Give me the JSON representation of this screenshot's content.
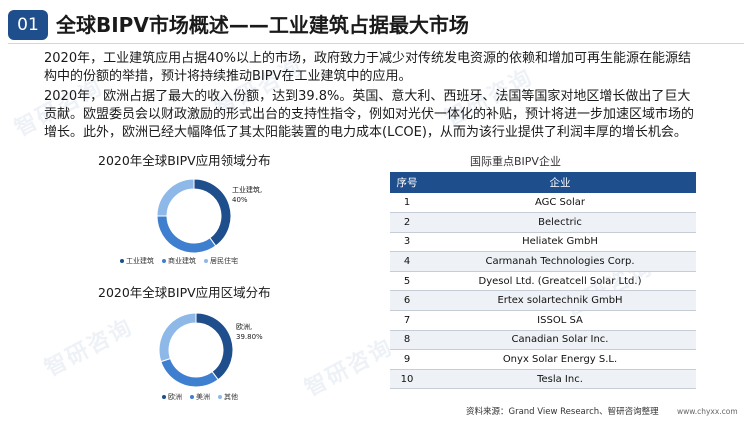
{
  "header": {
    "number": "01",
    "title": "全球BIPV市场概述——工业建筑占据最大市场"
  },
  "paragraphs": [
    "2020年，工业建筑应用占据40%以上的市场，政府致力于减少对传统发电资源的依赖和增加可再生能源在能源结构中的份额的举措，预计将持续推动BIPV在工业建筑中的应用。",
    "2020年，欧洲占据了最大的收入份额，达到39.8%。英国、意大利、西班牙、法国等国家对地区增长做出了巨大贡献。欧盟委员会以财政激励的形式出台的支持性指令，例如对光伏一体化的补贴，预计将进一步加速区域市场的增长。此外，欧洲已经大幅降低了其太阳能装置的电力成本(LCOE)，从而为该行业提供了利润丰厚的增长机会。"
  ],
  "chart_data": [
    {
      "type": "pie",
      "title": "2020年全球BIPV应用领域分布",
      "categories": [
        "工业建筑",
        "商业建筑",
        "居民住宅"
      ],
      "values": [
        40,
        35,
        25
      ],
      "annotation": "工业建筑,\n40%",
      "colors": [
        "#1f4e8c",
        "#3f7fd0",
        "#8db8e8"
      ],
      "legend_position": "bottom"
    },
    {
      "type": "pie",
      "title": "2020年全球BIPV应用区域分布",
      "categories": [
        "欧洲",
        "美洲",
        "其他"
      ],
      "values": [
        39.8,
        30.1,
        30.1
      ],
      "annotation": "欧洲,\n39.80%",
      "colors": [
        "#1f4e8c",
        "#3f7fd0",
        "#8db8e8"
      ],
      "legend_position": "bottom"
    }
  ],
  "table": {
    "title": "国际重点BIPV企业",
    "headers": [
      "序号",
      "企业"
    ],
    "rows": [
      [
        "1",
        "AGC Solar"
      ],
      [
        "2",
        "Belectric"
      ],
      [
        "3",
        "Heliatek GmbH"
      ],
      [
        "4",
        "Carmanah Technologies Corp."
      ],
      [
        "5",
        "Dyesol Ltd. (Greatcell Solar Ltd.)"
      ],
      [
        "6",
        "Ertex solartechnik GmbH"
      ],
      [
        "7",
        "ISSOL SA"
      ],
      [
        "8",
        "Canadian Solar Inc."
      ],
      [
        "9",
        "Onyx Solar Energy S.L."
      ],
      [
        "10",
        "Tesla Inc."
      ]
    ]
  },
  "source": "资料来源：Grand View Research、智研咨询整理",
  "site": "www.chyxx.com",
  "watermark": "智研咨询",
  "colors": {
    "primary": "#1f4e8c",
    "mid": "#3f7fd0",
    "light": "#8db8e8"
  }
}
